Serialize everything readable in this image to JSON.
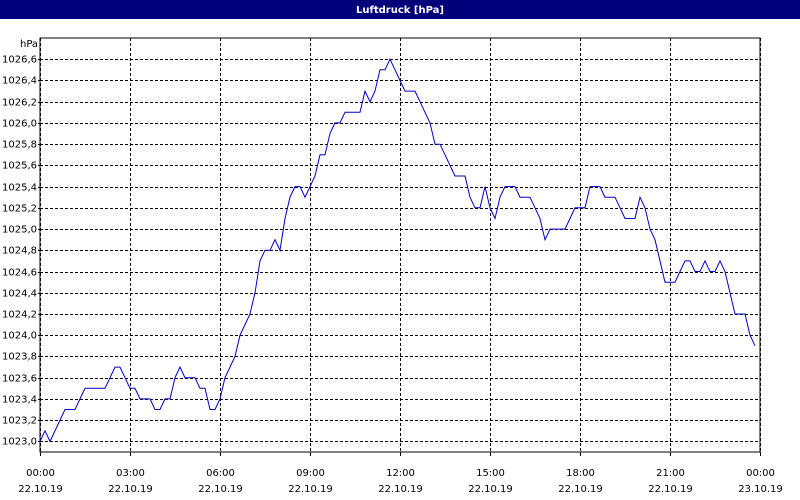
{
  "chart_data": {
    "type": "line",
    "title": "Luftdruck [hPa]",
    "y_label": "hPa",
    "x": [
      0,
      10,
      20,
      50,
      70,
      80,
      90,
      130,
      140,
      150,
      160,
      170,
      180,
      190,
      200,
      220,
      230,
      240,
      250,
      260,
      270,
      280,
      290,
      310,
      320,
      330,
      340,
      350,
      360,
      370,
      380,
      390,
      400,
      410,
      420,
      430,
      440,
      450,
      460,
      470,
      480,
      490,
      500,
      510,
      520,
      530,
      540,
      550,
      560,
      570,
      580,
      590,
      600,
      610,
      640,
      650,
      660,
      670,
      680,
      690,
      700,
      710,
      720,
      730,
      750,
      760,
      770,
      780,
      790,
      800,
      810,
      820,
      830,
      850,
      860,
      870,
      880,
      890,
      900,
      910,
      920,
      930,
      950,
      960,
      980,
      990,
      1000,
      1010,
      1020,
      1050,
      1060,
      1070,
      1090,
      1100,
      1120,
      1130,
      1150,
      1160,
      1170,
      1190,
      1200,
      1210,
      1220,
      1230,
      1240,
      1250,
      1270,
      1280,
      1290,
      1300,
      1310,
      1320,
      1330,
      1340,
      1350,
      1360,
      1370,
      1380,
      1390,
      1410,
      1420,
      1430
    ],
    "series": [
      {
        "color": "#0000c8",
        "values": [
          1023.0,
          1023.1,
          1023.0,
          1023.3,
          1023.3,
          1023.4,
          1023.5,
          1023.5,
          1023.6,
          1023.7,
          1023.7,
          1023.6,
          1023.5,
          1023.5,
          1023.4,
          1023.4,
          1023.3,
          1023.3,
          1023.4,
          1023.4,
          1023.6,
          1023.7,
          1023.6,
          1023.6,
          1023.5,
          1023.5,
          1023.3,
          1023.3,
          1023.4,
          1023.6,
          1023.7,
          1023.8,
          1024.0,
          1024.1,
          1024.2,
          1024.4,
          1024.7,
          1024.8,
          1024.8,
          1024.9,
          1024.8,
          1025.1,
          1025.3,
          1025.4,
          1025.4,
          1025.3,
          1025.4,
          1025.5,
          1025.7,
          1025.7,
          1025.9,
          1026.0,
          1026.0,
          1026.1,
          1026.1,
          1026.3,
          1026.2,
          1026.3,
          1026.5,
          1026.5,
          1026.6,
          1026.5,
          1026.4,
          1026.3,
          1026.3,
          1026.2,
          1026.1,
          1026.0,
          1025.8,
          1025.8,
          1025.7,
          1025.6,
          1025.5,
          1025.5,
          1025.3,
          1025.2,
          1025.2,
          1025.4,
          1025.2,
          1025.1,
          1025.3,
          1025.4,
          1025.4,
          1025.3,
          1025.3,
          1025.2,
          1025.1,
          1024.9,
          1025.0,
          1025.0,
          1025.1,
          1025.2,
          1025.2,
          1025.4,
          1025.4,
          1025.3,
          1025.3,
          1025.2,
          1025.1,
          1025.1,
          1025.3,
          1025.2,
          1025.0,
          1024.9,
          1024.7,
          1024.5,
          1024.5,
          1024.6,
          1024.7,
          1024.7,
          1024.6,
          1024.6,
          1024.7,
          1024.6,
          1024.6,
          1024.7,
          1024.6,
          1024.4,
          1024.2,
          1024.2,
          1024.0,
          1023.9
        ]
      }
    ],
    "xlim": [
      0,
      1440
    ],
    "xticks": [
      {
        "value": 0,
        "label": "00:00"
      },
      {
        "value": 180,
        "label": "03:00"
      },
      {
        "value": 360,
        "label": "06:00"
      },
      {
        "value": 540,
        "label": "09:00"
      },
      {
        "value": 720,
        "label": "12:00"
      },
      {
        "value": 900,
        "label": "15:00"
      },
      {
        "value": 1080,
        "label": "18:00"
      },
      {
        "value": 1260,
        "label": "21:00"
      },
      {
        "value": 1440,
        "label": "00:00"
      }
    ],
    "xtick_dates": [
      "22.10.19",
      "22.10.19",
      "22.10.19",
      "22.10.19",
      "22.10.19",
      "22.10.19",
      "22.10.19",
      "22.10.19",
      "23.10.19"
    ],
    "ylim": [
      1022.9,
      1026.8
    ],
    "yticks": [
      {
        "value": 1023.0,
        "label": "1023,0"
      },
      {
        "value": 1023.2,
        "label": "1023,2"
      },
      {
        "value": 1023.4,
        "label": "1023,4"
      },
      {
        "value": 1023.6,
        "label": "1023,6"
      },
      {
        "value": 1023.8,
        "label": "1023,8"
      },
      {
        "value": 1024.0,
        "label": "1024,0"
      },
      {
        "value": 1024.2,
        "label": "1024,2"
      },
      {
        "value": 1024.4,
        "label": "1024,4"
      },
      {
        "value": 1024.6,
        "label": "1024,6"
      },
      {
        "value": 1024.8,
        "label": "1024,8"
      },
      {
        "value": 1025.0,
        "label": "1025,0"
      },
      {
        "value": 1025.2,
        "label": "1025,2"
      },
      {
        "value": 1025.4,
        "label": "1025,4"
      },
      {
        "value": 1025.6,
        "label": "1025,6"
      },
      {
        "value": 1025.8,
        "label": "1025,8"
      },
      {
        "value": 1026.0,
        "label": "1026,0"
      },
      {
        "value": 1026.2,
        "label": "1026,2"
      },
      {
        "value": 1026.4,
        "label": "1026,4"
      },
      {
        "value": 1026.6,
        "label": "1026,6"
      }
    ],
    "grid": true
  }
}
